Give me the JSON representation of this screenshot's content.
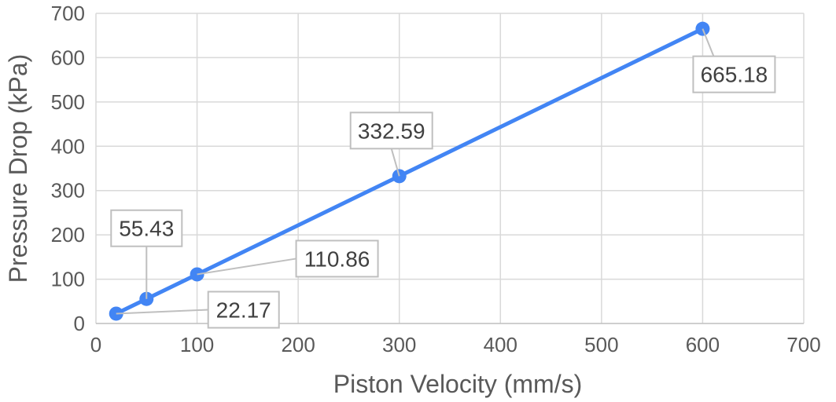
{
  "chart_data": {
    "type": "line",
    "title": "",
    "xlabel": "Piston Velocity (mm/s)",
    "ylabel": "Pressure Drop (kPa)",
    "xlim": [
      0,
      700
    ],
    "ylim": [
      0,
      700
    ],
    "xticks": [
      "0",
      "100",
      "200",
      "300",
      "400",
      "500",
      "600",
      "700"
    ],
    "yticks": [
      "0",
      "100",
      "200",
      "300",
      "400",
      "500",
      "600",
      "700"
    ],
    "grid": true,
    "legend": "none",
    "series": [
      {
        "color": "#4285f4",
        "marker": "circle",
        "points": [
          {
            "x": 20,
            "y": 22.17,
            "label": "22.17"
          },
          {
            "x": 50,
            "y": 55.43,
            "label": "55.43"
          },
          {
            "x": 100,
            "y": 110.86,
            "label": "110.86"
          },
          {
            "x": 300,
            "y": 332.59,
            "label": "332.59"
          },
          {
            "x": 600,
            "y": 665.18,
            "label": "665.18"
          }
        ]
      }
    ]
  }
}
